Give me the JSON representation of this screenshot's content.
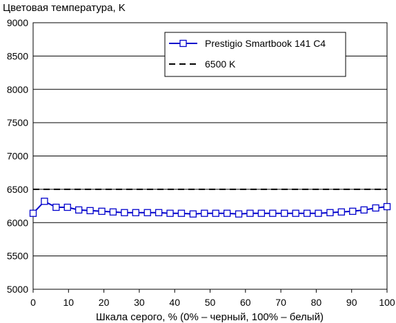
{
  "chart_data": {
    "type": "line",
    "ylabel": "Цветовая температура, K",
    "xlabel": "Шкала серого, % (0% – черный, 100% – белый)",
    "xlim": [
      0,
      100
    ],
    "ylim": [
      5000,
      9000
    ],
    "x_ticks": [
      0,
      10,
      20,
      30,
      40,
      50,
      60,
      70,
      80,
      90,
      100
    ],
    "y_ticks": [
      5000,
      5500,
      6000,
      6500,
      7000,
      7500,
      8000,
      8500,
      9000
    ],
    "grid": "horizontal",
    "legend_position": "top-right",
    "series": [
      {
        "name": "Prestigio Smartbook 141 C4",
        "color": "#0000cc",
        "style": "solid",
        "marker": "square",
        "x": [
          0,
          3.2,
          6.5,
          9.7,
          12.9,
          16.1,
          19.4,
          22.6,
          25.8,
          29.0,
          32.3,
          35.5,
          38.7,
          41.9,
          45.2,
          48.4,
          51.6,
          54.8,
          58.1,
          61.3,
          64.5,
          67.7,
          71.0,
          74.2,
          77.4,
          80.6,
          83.9,
          87.1,
          90.3,
          93.5,
          96.8,
          100
        ],
        "y": [
          6140,
          6320,
          6230,
          6230,
          6190,
          6180,
          6170,
          6160,
          6150,
          6150,
          6150,
          6150,
          6140,
          6140,
          6130,
          6140,
          6140,
          6140,
          6130,
          6140,
          6140,
          6140,
          6140,
          6140,
          6140,
          6140,
          6150,
          6160,
          6170,
          6190,
          6220,
          6240
        ]
      },
      {
        "name": "6500 K",
        "color": "#000000",
        "style": "dashed",
        "marker": "none",
        "x": [
          0,
          100
        ],
        "y": [
          6500,
          6500
        ]
      }
    ]
  }
}
